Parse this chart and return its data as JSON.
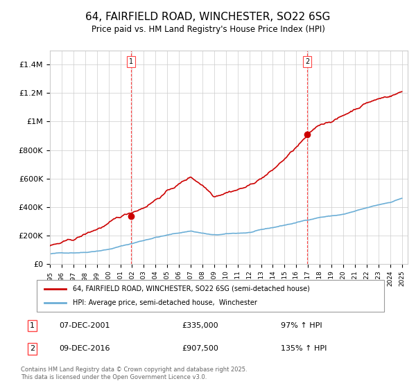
{
  "title": "64, FAIRFIELD ROAD, WINCHESTER, SO22 6SG",
  "subtitle": "Price paid vs. HM Land Registry's House Price Index (HPI)",
  "ylim": [
    0,
    1500000
  ],
  "yticks": [
    0,
    200000,
    400000,
    600000,
    800000,
    1000000,
    1200000,
    1400000
  ],
  "ytick_labels": [
    "£0",
    "£200K",
    "£400K",
    "£600K",
    "£800K",
    "£1M",
    "£1.2M",
    "£1.4M"
  ],
  "x_start_year": 1995,
  "x_end_year": 2025,
  "purchase1_year": 2001.92,
  "purchase1_price": 335000,
  "purchase1_label": "1",
  "purchase1_date": "07-DEC-2001",
  "purchase1_pct": "97%",
  "purchase2_year": 2016.94,
  "purchase2_price": 907500,
  "purchase2_label": "2",
  "purchase2_date": "09-DEC-2016",
  "purchase2_pct": "135%",
  "property_color": "#cc0000",
  "hpi_color": "#6baed6",
  "vline_color": "#ff4444",
  "grid_color": "#cccccc",
  "legend_label1": "64, FAIRFIELD ROAD, WINCHESTER, SO22 6SG (semi-detached house)",
  "legend_label2": "HPI: Average price, semi-detached house,  Winchester",
  "footer": "Contains HM Land Registry data © Crown copyright and database right 2025.\nThis data is licensed under the Open Government Licence v3.0.",
  "annotation1_row": "1    07-DEC-2001             £335,000          97% ↑ HPI",
  "annotation2_row": "2    09-DEC-2016             £907,500          135% ↑ HPI"
}
